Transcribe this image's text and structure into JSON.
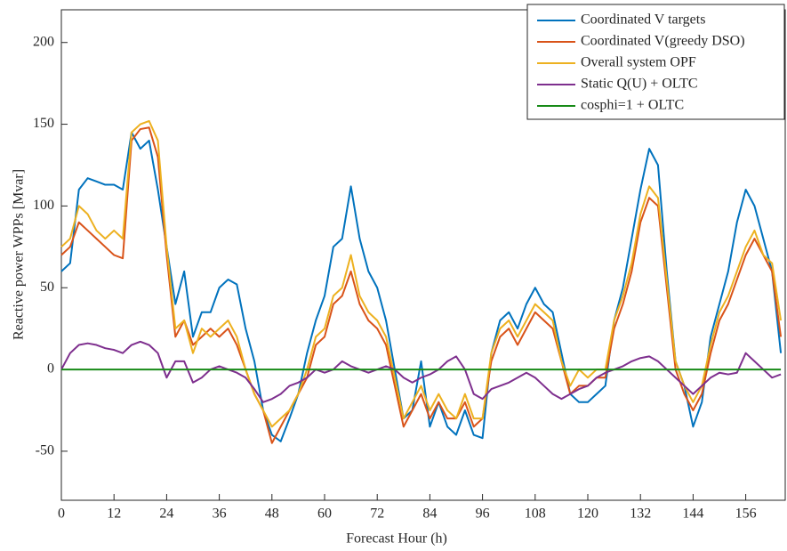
{
  "chart_data": {
    "type": "line",
    "xlabel": "Forecast Hour (h)",
    "ylabel": "Reactive power WPPs [Mvar]",
    "x": [
      0,
      2,
      4,
      6,
      8,
      10,
      12,
      14,
      16,
      18,
      20,
      22,
      24,
      26,
      28,
      30,
      32,
      34,
      36,
      38,
      40,
      42,
      44,
      46,
      48,
      50,
      52,
      54,
      56,
      58,
      60,
      62,
      64,
      66,
      68,
      70,
      72,
      74,
      76,
      78,
      80,
      82,
      84,
      86,
      88,
      90,
      92,
      94,
      96,
      98,
      100,
      102,
      104,
      106,
      108,
      110,
      112,
      114,
      116,
      118,
      120,
      122,
      124,
      126,
      128,
      130,
      132,
      134,
      136,
      138,
      140,
      142,
      144,
      146,
      148,
      150,
      152,
      154,
      156,
      158,
      160,
      162,
      164
    ],
    "xlim": [
      0,
      165
    ],
    "xticks": [
      0,
      12,
      24,
      36,
      48,
      60,
      72,
      84,
      96,
      108,
      120,
      132,
      144,
      156
    ],
    "ylim": [
      -80,
      220
    ],
    "yticks": [
      -50,
      0,
      50,
      100,
      150,
      200
    ],
    "grid": false,
    "legend": "top-right",
    "series": [
      {
        "name": "Coordinated V targets",
        "color": "#0072bd",
        "values": [
          60,
          65,
          110,
          117,
          115,
          113,
          113,
          110,
          145,
          135,
          140,
          110,
          75,
          40,
          60,
          20,
          35,
          35,
          50,
          55,
          52,
          25,
          5,
          -25,
          -40,
          -44,
          -30,
          -15,
          10,
          30,
          45,
          75,
          80,
          112,
          80,
          60,
          50,
          30,
          0,
          -30,
          -25,
          5,
          -35,
          -20,
          -35,
          -40,
          -25,
          -40,
          -42,
          10,
          30,
          35,
          25,
          40,
          50,
          40,
          35,
          10,
          -15,
          -20,
          -20,
          -15,
          -10,
          30,
          50,
          80,
          110,
          135,
          125,
          60,
          5,
          -10,
          -35,
          -20,
          20,
          40,
          60,
          90,
          110,
          100,
          80,
          60,
          10
        ]
      },
      {
        "name": "Coordinated V(greedy DSO)",
        "color": "#d95319",
        "values": [
          70,
          75,
          90,
          85,
          80,
          75,
          70,
          68,
          140,
          147,
          148,
          130,
          70,
          20,
          30,
          15,
          20,
          25,
          20,
          25,
          15,
          0,
          -15,
          -25,
          -45,
          -35,
          -25,
          -15,
          -5,
          15,
          20,
          40,
          45,
          60,
          40,
          30,
          25,
          15,
          -10,
          -35,
          -25,
          -15,
          -30,
          -20,
          -30,
          -30,
          -20,
          -35,
          -30,
          5,
          20,
          25,
          15,
          25,
          35,
          30,
          25,
          5,
          -15,
          -10,
          -10,
          -5,
          -5,
          25,
          40,
          60,
          90,
          105,
          100,
          50,
          0,
          -15,
          -25,
          -15,
          10,
          30,
          40,
          55,
          70,
          80,
          70,
          60,
          20
        ]
      },
      {
        "name": "Overall system OPF",
        "color": "#edb120",
        "values": [
          75,
          80,
          100,
          95,
          85,
          80,
          85,
          80,
          145,
          150,
          152,
          140,
          75,
          25,
          30,
          10,
          25,
          20,
          25,
          30,
          20,
          0,
          -15,
          -25,
          -35,
          -30,
          -25,
          -15,
          0,
          20,
          25,
          45,
          50,
          70,
          45,
          35,
          30,
          20,
          -5,
          -30,
          -20,
          -10,
          -25,
          -15,
          -25,
          -30,
          -15,
          -30,
          -30,
          10,
          25,
          30,
          20,
          30,
          40,
          35,
          30,
          5,
          -10,
          0,
          -5,
          0,
          0,
          30,
          45,
          65,
          95,
          112,
          105,
          55,
          5,
          -10,
          -20,
          -10,
          15,
          35,
          45,
          60,
          75,
          85,
          70,
          65,
          30
        ]
      },
      {
        "name": "Static Q(U) + OLTC",
        "color": "#7e2f8e",
        "values": [
          0,
          10,
          15,
          16,
          15,
          13,
          12,
          10,
          15,
          17,
          15,
          10,
          -5,
          5,
          5,
          -8,
          -5,
          0,
          2,
          0,
          -2,
          -5,
          -12,
          -20,
          -18,
          -15,
          -10,
          -8,
          -5,
          0,
          -2,
          0,
          5,
          2,
          0,
          -2,
          0,
          2,
          0,
          -5,
          -8,
          -5,
          -3,
          0,
          5,
          8,
          0,
          -15,
          -18,
          -12,
          -10,
          -8,
          -5,
          -2,
          -5,
          -10,
          -15,
          -18,
          -15,
          -12,
          -10,
          -5,
          -2,
          0,
          2,
          5,
          7,
          8,
          5,
          0,
          -5,
          -10,
          -15,
          -10,
          -5,
          -2,
          -3,
          -2,
          10,
          5,
          0,
          -5,
          -3
        ]
      },
      {
        "name": "cosphi=1 + OLTC",
        "color": "#178a17",
        "values": [
          0,
          0,
          0,
          0,
          0,
          0,
          0,
          0,
          0,
          0,
          0,
          0,
          0,
          0,
          0,
          0,
          0,
          0,
          0,
          0,
          0,
          0,
          0,
          0,
          0,
          0,
          0,
          0,
          0,
          0,
          0,
          0,
          0,
          0,
          0,
          0,
          0,
          0,
          0,
          0,
          0,
          0,
          0,
          0,
          0,
          0,
          0,
          0,
          0,
          0,
          0,
          0,
          0,
          0,
          0,
          0,
          0,
          0,
          0,
          0,
          0,
          0,
          0,
          0,
          0,
          0,
          0,
          0,
          0,
          0,
          0,
          0,
          0,
          0,
          0,
          0,
          0,
          0,
          0,
          0,
          0,
          0,
          0
        ]
      }
    ]
  }
}
